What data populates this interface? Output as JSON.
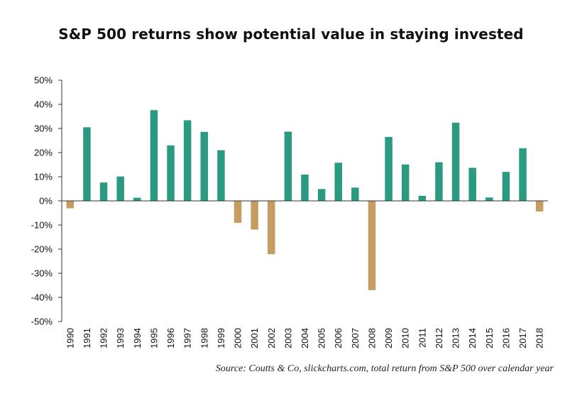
{
  "title": "S&P 500 returns show potential value in staying invested",
  "source": "Source: Coutts & Co, slickcharts.com, total return from S&P 500 over calendar year",
  "colors": {
    "positive": "#2a9a80",
    "negative": "#c69c63",
    "axis": "#333333"
  },
  "chart_data": {
    "type": "bar",
    "title": "S&P 500 returns show potential value in staying invested",
    "xlabel": "",
    "ylabel": "",
    "ylim": [
      -50,
      50
    ],
    "ytick_step": 10,
    "ytick_labels": [
      "50%",
      "40%",
      "30%",
      "20%",
      "10%",
      "0%",
      "-10%",
      "-20%",
      "-30%",
      "-40%",
      "-50%"
    ],
    "grid": false,
    "legend": "none",
    "categories": [
      "1990",
      "1991",
      "1992",
      "1993",
      "1994",
      "1995",
      "1996",
      "1997",
      "1998",
      "1999",
      "2000",
      "2001",
      "2002",
      "2003",
      "2004",
      "2005",
      "2006",
      "2007",
      "2008",
      "2009",
      "2010",
      "2011",
      "2012",
      "2013",
      "2014",
      "2015",
      "2016",
      "2017",
      "2018"
    ],
    "values": [
      -3.1,
      30.5,
      7.6,
      10.1,
      1.3,
      37.6,
      23.0,
      33.4,
      28.6,
      21.0,
      -9.1,
      -11.9,
      -22.1,
      28.7,
      10.9,
      4.9,
      15.8,
      5.5,
      -37.0,
      26.5,
      15.1,
      2.1,
      16.0,
      32.4,
      13.7,
      1.4,
      12.0,
      21.8,
      -4.4
    ]
  }
}
